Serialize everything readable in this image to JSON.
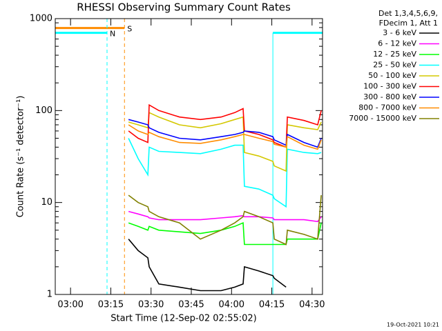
{
  "chart_data": {
    "type": "line",
    "title": "RHESSI Observing Summary Count Rates",
    "xlabel": "Start Time (12-Sep-02 02:55:02)",
    "ylabel": "Count Rate (s⁻¹ detector⁻¹)",
    "legend_header": [
      "Det 1,3,4,5,6,9,",
      "FDecim 1, Att 1"
    ],
    "footer": "19-Oct-2021 10:21",
    "log_y": true,
    "xlim": [
      174.3,
      273.9
    ],
    "ylim": [
      1,
      1000
    ],
    "yticks": [
      1,
      10,
      100,
      1000
    ],
    "xticks": [
      {
        "value": 180,
        "label": "03:00"
      },
      {
        "value": 195,
        "label": "03:15"
      },
      {
        "value": 210,
        "label": "03:30"
      },
      {
        "value": 225,
        "label": "03:45"
      },
      {
        "value": 240,
        "label": "04:00"
      },
      {
        "value": 255,
        "label": "04:15"
      },
      {
        "value": 270,
        "label": "04:30"
      }
    ],
    "x": [
      201.6,
      205.2,
      208.8,
      209.3,
      212.9,
      220.6,
      228.4,
      236.1,
      241.2,
      244.3,
      244.8,
      250.2,
      255.4,
      255.9,
      260.3,
      260.8,
      267,
      272.1,
      273.4
    ],
    "series": [
      {
        "name": "3 - 6 keV",
        "color": "#000000",
        "values": [
          4,
          3,
          2.5,
          2,
          1.3,
          1.2,
          1.1,
          1.1,
          1.2,
          1.3,
          2,
          1.8,
          1.6,
          1.5,
          1.2,
          null,
          null,
          null,
          null
        ]
      },
      {
        "name": "6 - 12 keV",
        "color": "#ff00ff",
        "values": [
          8,
          7.5,
          7,
          6.8,
          6.5,
          6.5,
          6.5,
          6.8,
          7,
          7.2,
          7,
          7,
          6.8,
          6.5,
          6.5,
          6.5,
          6.5,
          6.2,
          7
        ]
      },
      {
        "name": "12 - 25 keV",
        "color": "#00ff00",
        "values": [
          6,
          5.5,
          5,
          5.5,
          5,
          4.8,
          4.6,
          5,
          5.5,
          6,
          3.5,
          3.5,
          3.5,
          3.5,
          3.5,
          4,
          4,
          4,
          6
        ]
      },
      {
        "name": "25 - 50 keV",
        "color": "#00ffff",
        "values": [
          50,
          30,
          20,
          40,
          36,
          35,
          34,
          38,
          42,
          42,
          15,
          14,
          12,
          11,
          9,
          38,
          35,
          34,
          35
        ]
      },
      {
        "name": "50 - 100 keV",
        "color": "#d4c800",
        "values": [
          75,
          70,
          65,
          95,
          85,
          70,
          65,
          72,
          80,
          85,
          35,
          32,
          28,
          25,
          22,
          70,
          65,
          62,
          75
        ]
      },
      {
        "name": "100 - 300 keV",
        "color": "#ff0000",
        "values": [
          60,
          50,
          45,
          115,
          100,
          85,
          80,
          85,
          95,
          105,
          60,
          55,
          48,
          45,
          40,
          85,
          78,
          70,
          100
        ]
      },
      {
        "name": "300 - 800 keV",
        "color": "#0000ff",
        "values": [
          80,
          75,
          70,
          65,
          58,
          50,
          48,
          52,
          55,
          58,
          60,
          58,
          52,
          48,
          42,
          55,
          45,
          40,
          50
        ]
      },
      {
        "name": "800 - 7000 keV",
        "color": "#ff8c00",
        "values": [
          70,
          60,
          55,
          58,
          52,
          45,
          44,
          48,
          52,
          55,
          55,
          50,
          46,
          43,
          40,
          52,
          42,
          38,
          48
        ]
      },
      {
        "name": "7000 - 15000 keV",
        "color": "#808000",
        "values": [
          12,
          10,
          9,
          8,
          7,
          6,
          4,
          5,
          6,
          7,
          8,
          7,
          6,
          4,
          3.5,
          5,
          4.5,
          4,
          12
        ]
      }
    ],
    "flags": [
      {
        "label": "S",
        "color": "#ff8c00",
        "level": 790,
        "start": 174.3,
        "end": 200.1
      },
      {
        "label": "N",
        "color": "#00ffff",
        "level": 700,
        "start": 174.3,
        "end": 193.6
      },
      {
        "color": "#00ffff",
        "level": 700,
        "start": 255.4,
        "end": 273.9
      }
    ]
  }
}
